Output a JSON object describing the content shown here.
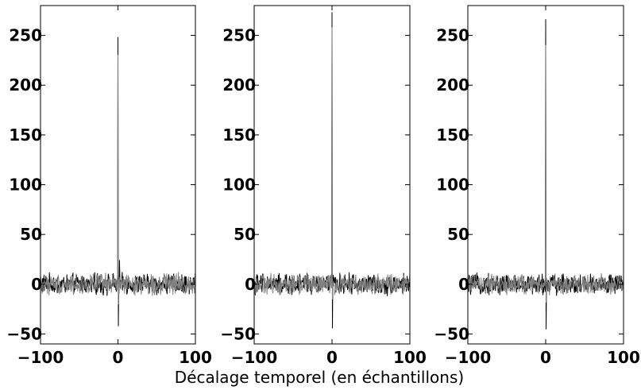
{
  "figure": {
    "xlabel": "Décalage temporel (en échantillons)"
  },
  "chart_data": [
    {
      "type": "line",
      "title": "",
      "xlabel": "",
      "ylabel": "",
      "xlim": [
        -100,
        100
      ],
      "ylim": [
        -60,
        280
      ],
      "xticks": [
        -100,
        0,
        100
      ],
      "xtick_labels": [
        "−100",
        "0",
        "100"
      ],
      "yticks": [
        -50,
        0,
        50,
        100,
        150,
        200,
        250
      ],
      "ytick_labels": [
        "−50",
        "0",
        "50",
        "100",
        "150",
        "200",
        "250"
      ],
      "grid": false,
      "series": [
        {
          "color": "#000000",
          "peak": {
            "x": 0,
            "y": 248
          },
          "min": {
            "x": 0,
            "y": -42
          },
          "side_spike": {
            "x": 2,
            "y": 24
          },
          "noise_amplitude": 10
        },
        {
          "color": "#808080",
          "peak": {
            "x": 0,
            "y": 230
          },
          "min": {
            "x": 0,
            "y": -20
          },
          "noise_amplitude": 10
        }
      ]
    },
    {
      "type": "line",
      "title": "",
      "xlabel": "",
      "ylabel": "",
      "xlim": [
        -100,
        100
      ],
      "ylim": [
        -60,
        280
      ],
      "xticks": [
        -100,
        0,
        100
      ],
      "xtick_labels": [
        "−100",
        "0",
        "100"
      ],
      "yticks": [
        -50,
        0,
        50,
        100,
        150,
        200,
        250
      ],
      "ytick_labels": [
        "−50",
        "0",
        "50",
        "100",
        "150",
        "200",
        "250"
      ],
      "grid": false,
      "series": [
        {
          "color": "#000000",
          "peak": {
            "x": 0,
            "y": 273
          },
          "min": {
            "x": 0,
            "y": -44
          },
          "noise_amplitude": 10
        },
        {
          "color": "#808080",
          "peak": {
            "x": 0,
            "y": 258
          },
          "min": {
            "x": 0,
            "y": -15
          },
          "noise_amplitude": 10
        }
      ]
    },
    {
      "type": "line",
      "title": "",
      "xlabel": "",
      "ylabel": "",
      "xlim": [
        -100,
        100
      ],
      "ylim": [
        -60,
        280
      ],
      "xticks": [
        -100,
        0,
        100
      ],
      "xtick_labels": [
        "−100",
        "0",
        "100"
      ],
      "yticks": [
        -50,
        0,
        50,
        100,
        150,
        200,
        250
      ],
      "ytick_labels": [
        "−50",
        "0",
        "50",
        "100",
        "150",
        "200",
        "250"
      ],
      "grid": false,
      "series": [
        {
          "color": "#000000",
          "peak": {
            "x": 0,
            "y": 266
          },
          "min": {
            "x": 0,
            "y": -45
          },
          "noise_amplitude": 10
        },
        {
          "color": "#808080",
          "peak": {
            "x": 0,
            "y": 240
          },
          "min": {
            "x": 0,
            "y": -18
          },
          "noise_amplitude": 10
        }
      ]
    }
  ]
}
